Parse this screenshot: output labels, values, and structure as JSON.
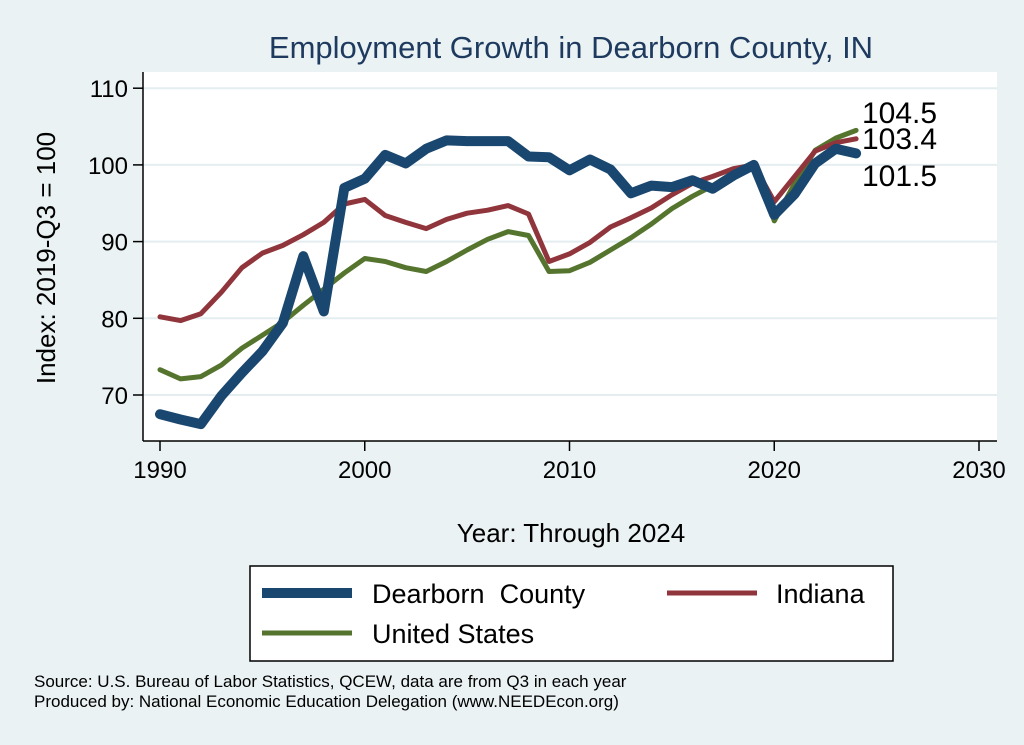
{
  "chart_data": {
    "type": "line",
    "title": "Employment Growth in Dearborn County, IN",
    "xlabel": "Year: Through 2024",
    "ylabel": "Index: 2019-Q3 = 100",
    "xlim": [
      1990,
      2030
    ],
    "ylim": [
      64,
      111
    ],
    "xticks": [
      1990,
      2000,
      2010,
      2020,
      2030
    ],
    "yticks": [
      70,
      80,
      90,
      100,
      110
    ],
    "grid": true,
    "legend_position": "bottom",
    "x": [
      1990,
      1991,
      1992,
      1993,
      1994,
      1995,
      1996,
      1997,
      1998,
      1999,
      2000,
      2001,
      2002,
      2003,
      2004,
      2005,
      2006,
      2007,
      2008,
      2009,
      2010,
      2011,
      2012,
      2013,
      2014,
      2015,
      2016,
      2017,
      2018,
      2019,
      2020,
      2021,
      2022,
      2023,
      2024
    ],
    "series": [
      {
        "name": "Dearborn  County",
        "color": "#1a476f",
        "stroke": "thick",
        "values": [
          67.5,
          66.8,
          66.2,
          69.9,
          72.9,
          75.7,
          79.4,
          88.1,
          80.9,
          97.0,
          98.2,
          101.3,
          100.2,
          102.1,
          103.2,
          103.1,
          103.1,
          103.1,
          101.1,
          101.0,
          99.3,
          100.7,
          99.4,
          96.3,
          97.3,
          97.1,
          98.0,
          96.9,
          98.6,
          100.0,
          93.5,
          96.2,
          100.2,
          102.1,
          101.5
        ],
        "end_label": "101.5"
      },
      {
        "name": "Indiana",
        "color": "#90353b",
        "stroke": "medium",
        "values": [
          80.2,
          79.7,
          80.6,
          83.4,
          86.6,
          88.5,
          89.5,
          90.9,
          92.5,
          94.9,
          95.5,
          93.4,
          92.5,
          91.7,
          92.9,
          93.7,
          94.1,
          94.7,
          93.6,
          87.4,
          88.4,
          89.9,
          91.9,
          93.1,
          94.4,
          96.1,
          97.6,
          98.5,
          99.5,
          100.0,
          95.2,
          98.5,
          101.8,
          102.9,
          103.4
        ],
        "end_label": "103.4"
      },
      {
        "name": "United States",
        "color": "#55752f",
        "stroke": "medium",
        "values": [
          73.3,
          72.1,
          72.4,
          73.9,
          76.1,
          77.8,
          79.5,
          81.7,
          83.8,
          85.9,
          87.8,
          87.4,
          86.6,
          86.1,
          87.4,
          88.9,
          90.3,
          91.3,
          90.8,
          86.1,
          86.2,
          87.3,
          88.9,
          90.5,
          92.3,
          94.3,
          95.9,
          97.3,
          99.0,
          100.0,
          92.7,
          97.6,
          101.9,
          103.5,
          104.5
        ],
        "end_label": "104.5"
      }
    ]
  },
  "source_lines": [
    "Source: U.S. Bureau of Labor Statistics, QCEW, data are from Q3 in each year",
    "Produced by: National Economic Education Delegation (www.NEEDEcon.org)"
  ]
}
